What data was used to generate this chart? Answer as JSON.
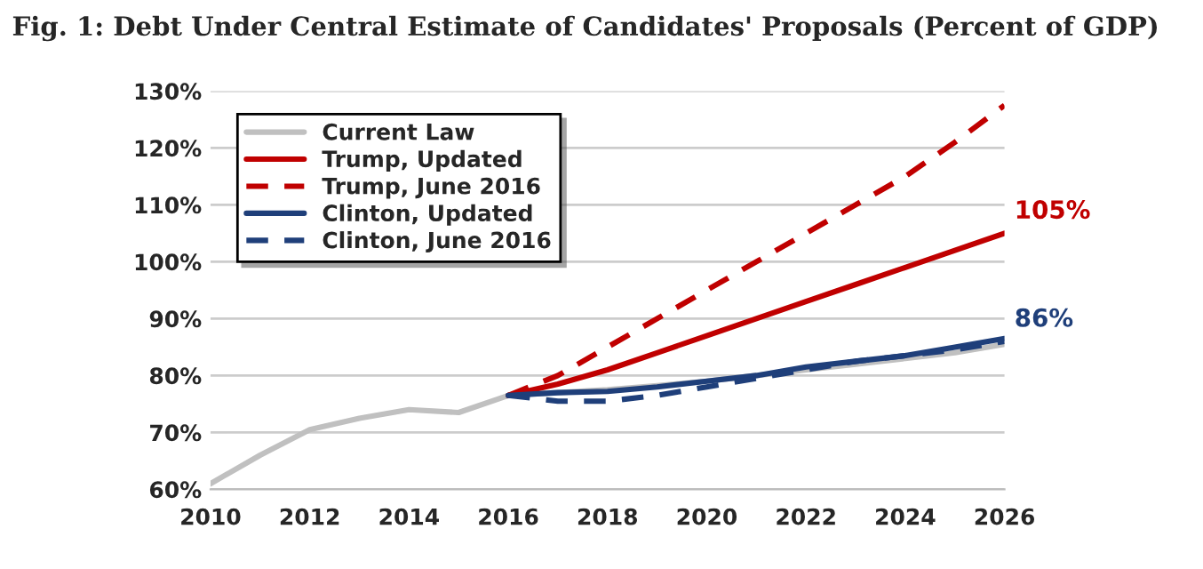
{
  "chart_data": {
    "type": "line",
    "title": "Fig. 1: Debt Under Central Estimate of Candidates' Proposals (Percent of GDP)",
    "series": [
      {
        "name": "Current Law",
        "color": "#c0c0c0",
        "line_style": "solid",
        "x": [
          2010,
          2011,
          2012,
          2013,
          2014,
          2015,
          2016,
          2017,
          2018,
          2019,
          2020,
          2021,
          2022,
          2023,
          2024,
          2025,
          2026
        ],
        "values": [
          61,
          66,
          70.5,
          72.5,
          74,
          73.5,
          76.5,
          77,
          77.5,
          78.2,
          79,
          80,
          81,
          82,
          83,
          84,
          85.5
        ]
      },
      {
        "name": "Trump, Updated",
        "color": "#c00000",
        "line_style": "solid",
        "x": [
          2016,
          2017,
          2018,
          2019,
          2020,
          2021,
          2022,
          2023,
          2024,
          2025,
          2026
        ],
        "values": [
          76.5,
          78.5,
          81,
          84,
          87,
          90,
          93,
          96,
          99,
          102,
          105
        ]
      },
      {
        "name": "Trump, June 2016",
        "color": "#c00000",
        "line_style": "dashed",
        "x": [
          2016,
          2017,
          2018,
          2019,
          2020,
          2021,
          2022,
          2023,
          2024,
          2025,
          2026
        ],
        "values": [
          76.5,
          80,
          85,
          90,
          95,
          100,
          105,
          110,
          115,
          121,
          127.5
        ]
      },
      {
        "name": "Clinton, Updated",
        "color": "#1f3f7a",
        "line_style": "solid",
        "x": [
          2016,
          2017,
          2018,
          2019,
          2020,
          2021,
          2022,
          2023,
          2024,
          2025,
          2026
        ],
        "values": [
          76.5,
          77,
          77.2,
          78,
          79,
          80,
          81.5,
          82.5,
          83.5,
          85,
          86.5
        ]
      },
      {
        "name": "Clinton, June 2016",
        "color": "#1f3f7a",
        "line_style": "dashed",
        "x": [
          2016,
          2017,
          2018,
          2019,
          2020,
          2021,
          2022,
          2023,
          2024,
          2025,
          2026
        ],
        "values": [
          76.5,
          75.5,
          75.5,
          76.5,
          78,
          79.5,
          81,
          82.5,
          83.5,
          84.5,
          86
        ]
      }
    ],
    "annotations": [
      {
        "text": "105%",
        "x": 2026,
        "y": 105
      },
      {
        "text": "86%",
        "x": 2026,
        "y": 86
      }
    ],
    "xlim": [
      2010,
      2026
    ],
    "xticks": [
      2010,
      2012,
      2014,
      2016,
      2018,
      2020,
      2022,
      2024,
      2026
    ],
    "ylim": [
      60,
      130
    ],
    "yticks": [
      {
        "value": 60,
        "label": "60%"
      },
      {
        "value": 70,
        "label": "70%"
      },
      {
        "value": 80,
        "label": "80%"
      },
      {
        "value": 90,
        "label": "90%"
      },
      {
        "value": 100,
        "label": "100%"
      },
      {
        "value": 110,
        "label": "110%"
      },
      {
        "value": 120,
        "label": "120%"
      },
      {
        "value": 130,
        "label": "130%"
      }
    ],
    "grid": "y",
    "legend": "top left",
    "marker": "none"
  }
}
